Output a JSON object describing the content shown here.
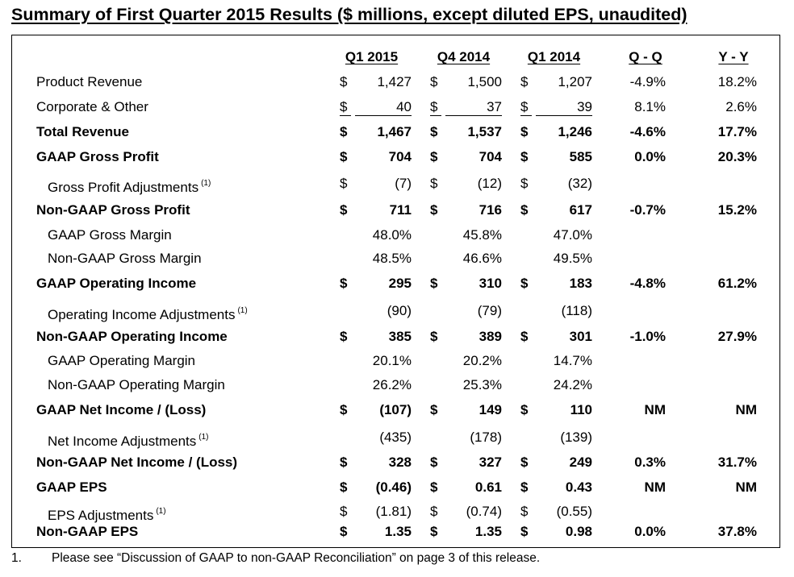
{
  "title": "Summary of First Quarter 2015 Results ($ millions, except diluted EPS, unaudited)",
  "columns": [
    "Q1 2015",
    "Q4 2014",
    "Q1 2014",
    "Q - Q",
    "Y - Y"
  ],
  "rows": [
    {
      "label": "Product Revenue",
      "c1": "$",
      "v1": "1,427",
      "c2": "$",
      "v2": "1,500",
      "c3": "$",
      "v3": "1,207",
      "qq": "-4.9%",
      "yy": "18.2%"
    },
    {
      "label": "Corporate & Other",
      "c1": "$",
      "v1": "40",
      "c2": "$",
      "v2": "37",
      "c3": "$",
      "v3": "39",
      "qq": "8.1%",
      "yy": "2.6%"
    },
    {
      "label": "Total Revenue",
      "c1": "$",
      "v1": "1,467",
      "c2": "$",
      "v2": "1,537",
      "c3": "$",
      "v3": "1,246",
      "qq": "-4.6%",
      "yy": "17.7%"
    },
    {
      "label": "GAAP Gross Profit",
      "c1": "$",
      "v1": "704",
      "c2": "$",
      "v2": "704",
      "c3": "$",
      "v3": "585",
      "qq": "0.0%",
      "yy": "20.3%"
    },
    {
      "label": "Gross Profit Adjustments",
      "sup": "(1)",
      "c1": "$",
      "v1": "(7)",
      "c2": "$",
      "v2": "(12)",
      "c3": "$",
      "v3": "(32)",
      "qq": "",
      "yy": ""
    },
    {
      "label": "Non-GAAP Gross Profit",
      "c1": "$",
      "v1": "711",
      "c2": "$",
      "v2": "716",
      "c3": "$",
      "v3": "617",
      "qq": "-0.7%",
      "yy": "15.2%"
    },
    {
      "label": "GAAP Gross Margin",
      "c1": "",
      "v1": "48.0%",
      "c2": "",
      "v2": "45.8%",
      "c3": "",
      "v3": "47.0%",
      "qq": "",
      "yy": ""
    },
    {
      "label": "Non-GAAP Gross Margin",
      "c1": "",
      "v1": "48.5%",
      "c2": "",
      "v2": "46.6%",
      "c3": "",
      "v3": "49.5%",
      "qq": "",
      "yy": ""
    },
    {
      "label": "GAAP Operating Income",
      "c1": "$",
      "v1": "295",
      "c2": "$",
      "v2": "310",
      "c3": "$",
      "v3": "183",
      "qq": "-4.8%",
      "yy": "61.2%"
    },
    {
      "label": "Operating Income Adjustments",
      "sup": "(1)",
      "c1": "",
      "v1": "(90)",
      "c2": "",
      "v2": "(79)",
      "c3": "",
      "v3": "(118)",
      "qq": "",
      "yy": ""
    },
    {
      "label": "Non-GAAP Operating Income",
      "c1": "$",
      "v1": "385",
      "c2": "$",
      "v2": "389",
      "c3": "$",
      "v3": "301",
      "qq": "-1.0%",
      "yy": "27.9%"
    },
    {
      "label": "GAAP Operating Margin",
      "c1": "",
      "v1": "20.1%",
      "c2": "",
      "v2": "20.2%",
      "c3": "",
      "v3": "14.7%",
      "qq": "",
      "yy": ""
    },
    {
      "label": "Non-GAAP Operating Margin",
      "c1": "",
      "v1": "26.2%",
      "c2": "",
      "v2": "25.3%",
      "c3": "",
      "v3": "24.2%",
      "qq": "",
      "yy": ""
    },
    {
      "label": "GAAP Net Income / (Loss)",
      "c1": "$",
      "v1": "(107)",
      "c2": "$",
      "v2": "149",
      "c3": "$",
      "v3": "110",
      "qq": "NM",
      "yy": "NM"
    },
    {
      "label": "Net Income Adjustments",
      "sup": "(1)",
      "c1": "",
      "v1": "(435)",
      "c2": "",
      "v2": "(178)",
      "c3": "",
      "v3": "(139)",
      "qq": "",
      "yy": ""
    },
    {
      "label": "Non-GAAP Net Income / (Loss)",
      "c1": "$",
      "v1": "328",
      "c2": "$",
      "v2": "327",
      "c3": "$",
      "v3": "249",
      "qq": "0.3%",
      "yy": "31.7%"
    },
    {
      "label": "GAAP EPS",
      "c1": "$",
      "v1": "(0.46)",
      "c2": "$",
      "v2": "0.61",
      "c3": "$",
      "v3": "0.43",
      "qq": "NM",
      "yy": "NM"
    },
    {
      "label": "EPS Adjustments",
      "sup": "(1)",
      "c1": "$",
      "v1": "(1.81)",
      "c2": "$",
      "v2": "(0.74)",
      "c3": "$",
      "v3": "(0.55)",
      "qq": "",
      "yy": ""
    },
    {
      "label": "Non-GAAP EPS",
      "c1": "$",
      "v1": "1.35",
      "c2": "$",
      "v2": "1.35",
      "c3": "$",
      "v3": "0.98",
      "qq": "0.0%",
      "yy": "37.8%"
    }
  ],
  "footnote": {
    "number": "1.",
    "text": "Please see “Discussion of GAAP to non-GAAP Reconciliation” on page 3 of this release."
  }
}
